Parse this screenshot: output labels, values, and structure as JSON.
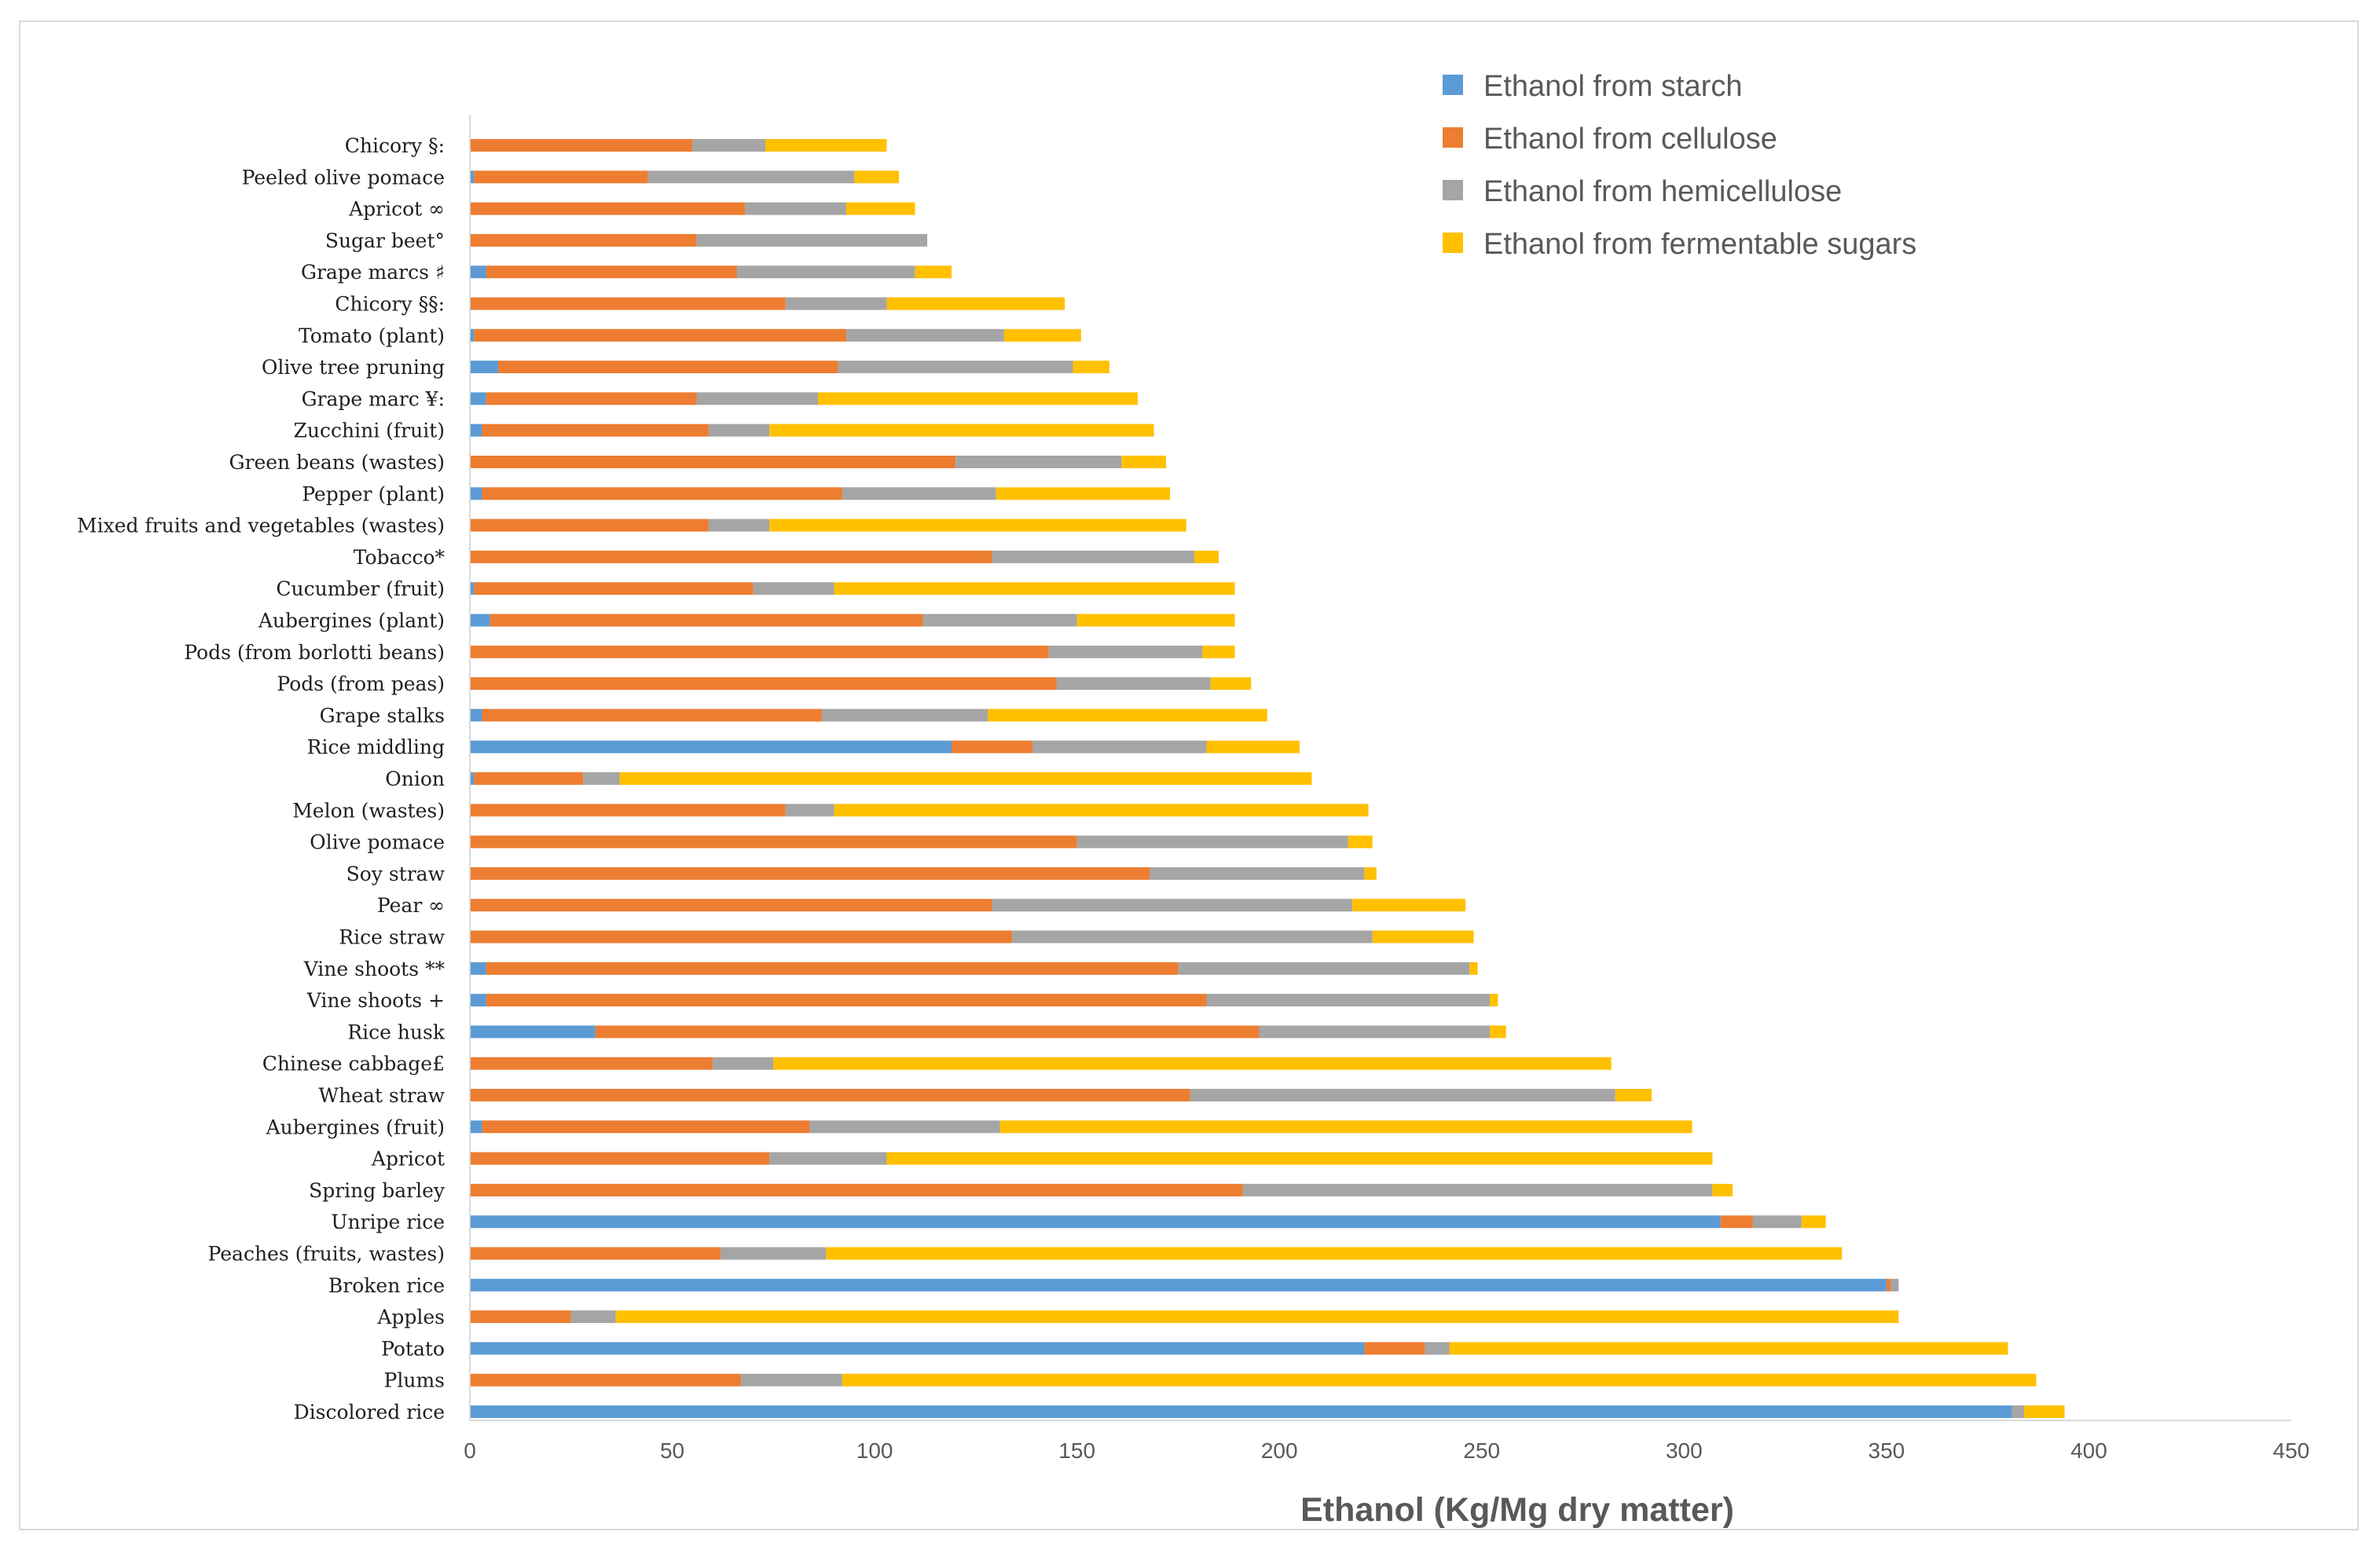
{
  "chart_data": {
    "type": "bar",
    "orientation": "horizontal",
    "stacked": true,
    "title": "",
    "xlabel": "Ethanol (Kg/Mg dry matter)",
    "ylabel": "",
    "xlim": [
      0,
      450
    ],
    "x_ticks": [
      0,
      50,
      100,
      150,
      200,
      250,
      300,
      350,
      400,
      450
    ],
    "grid": false,
    "legend_position": "top-right",
    "categories": [
      "Chicory §:",
      "Peeled olive pomace",
      "Apricot ∞",
      "Sugar beet°",
      "Grape marcs ♯",
      "Chicory §§:",
      "Tomato (plant)",
      "Olive tree pruning",
      "Grape marc ¥:",
      "Zucchini (fruit)",
      "Green beans (wastes)",
      "Pepper (plant)",
      "Mixed fruits and vegetables (wastes)",
      "Tobacco*",
      "Cucumber (fruit)",
      "Aubergines (plant)",
      "Pods (from borlotti beans)",
      "Pods (from peas)",
      "Grape stalks",
      "Rice middling",
      "Onion",
      "Melon (wastes)",
      "Olive pomace",
      "Soy straw",
      "Pear ∞",
      "Rice straw",
      "Vine shoots **",
      "Vine shoots +",
      "Rice husk",
      "Chinese cabbage£",
      "Wheat straw",
      "Aubergines (fruit)",
      "Apricot",
      "Spring barley",
      "Unripe rice",
      "Peaches (fruits, wastes)",
      "Broken rice",
      "Apples",
      "Potato",
      "Plums",
      "Discolored rice"
    ],
    "series": [
      {
        "name": "Ethanol from starch",
        "color": "#5b9bd5",
        "values": [
          0,
          1,
          0,
          0,
          4,
          0,
          1,
          7,
          4,
          3,
          0,
          3,
          0,
          0,
          1,
          5,
          0,
          0,
          3,
          119,
          1,
          0,
          0,
          0,
          0,
          0,
          4,
          4,
          31,
          0,
          0,
          3,
          0,
          0,
          309,
          0,
          350,
          0,
          221,
          0,
          381
        ]
      },
      {
        "name": "Ethanol from cellulose",
        "color": "#ed7d31",
        "values": [
          55,
          43,
          68,
          56,
          62,
          78,
          92,
          84,
          52,
          56,
          120,
          89,
          59,
          129,
          69,
          107,
          143,
          145,
          84,
          20,
          27,
          78,
          150,
          168,
          129,
          134,
          171,
          178,
          164,
          60,
          178,
          81,
          74,
          191,
          8,
          62,
          1,
          25,
          15,
          67,
          0
        ]
      },
      {
        "name": "Ethanol from hemicellulose",
        "color": "#a5a5a5",
        "values": [
          18,
          51,
          25,
          57,
          44,
          25,
          39,
          58,
          30,
          15,
          41,
          38,
          15,
          50,
          20,
          38,
          38,
          38,
          41,
          43,
          9,
          12,
          67,
          53,
          89,
          89,
          72,
          70,
          57,
          15,
          105,
          47,
          29,
          116,
          12,
          26,
          2,
          11,
          6,
          25,
          3
        ]
      },
      {
        "name": "Ethanol from fermentable sugars",
        "color": "#ffc000",
        "values": [
          30,
          11,
          17,
          0,
          9,
          44,
          19,
          9,
          79,
          95,
          11,
          43,
          103,
          6,
          99,
          39,
          8,
          10,
          69,
          23,
          171,
          132,
          6,
          3,
          28,
          25,
          2,
          2,
          4,
          207,
          9,
          171,
          204,
          5,
          6,
          251,
          0,
          317,
          138,
          295,
          10
        ]
      }
    ]
  }
}
